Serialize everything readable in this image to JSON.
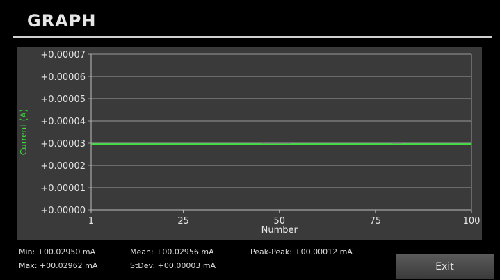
{
  "header": {
    "title": "GRAPH"
  },
  "chart_data": {
    "type": "line",
    "title": "",
    "xlabel": "Number",
    "ylabel": "Current (A)",
    "xlim": [
      1,
      100
    ],
    "ylim": [
      0,
      7e-05
    ],
    "x_ticks": [
      1,
      25,
      50,
      75,
      100
    ],
    "x_tick_labels": [
      "1",
      "25",
      "50",
      "75",
      "100"
    ],
    "y_ticks": [
      0,
      1e-05,
      2e-05,
      3e-05,
      4e-05,
      5e-05,
      6e-05,
      7e-05
    ],
    "y_tick_labels": [
      "+0.00000",
      "+0.00001",
      "+0.00002",
      "+0.00003",
      "+0.00004",
      "+0.00005",
      "+0.00006",
      "+0.00007"
    ],
    "grid": true,
    "colors": {
      "line": "#3ee03e",
      "background": "#3a3a3a",
      "grid": "#9a9a9a"
    },
    "series": [
      {
        "x": [
          1,
          44,
          45,
          52,
          53,
          78,
          79,
          81,
          82,
          100
        ],
        "y": [
          2.96e-05,
          2.96e-05,
          2.95e-05,
          2.95e-05,
          2.96e-05,
          2.96e-05,
          2.95e-05,
          2.95e-05,
          2.96e-05,
          2.96e-05
        ]
      }
    ]
  },
  "stats": {
    "min": "Min:  +00.02950 mA",
    "max": "Max: +00.02962 mA",
    "mean": "Mean:  +00.02956 mA",
    "stdev": "StDev: +00.00003 mA",
    "peak_peak": "Peak-Peak: +00.00012 mA"
  },
  "buttons": {
    "exit_label": "Exit"
  }
}
